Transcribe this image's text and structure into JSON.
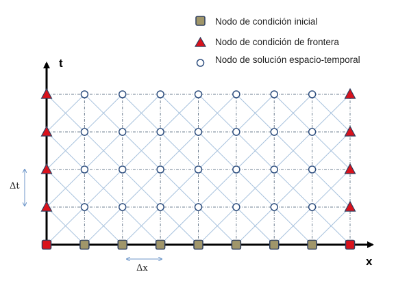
{
  "legend": {
    "initial_node": "Nodo de condición inicial",
    "boundary_node": "Nodo de condición de frontera",
    "solution_node": "Nodo de solución espacio-temporal"
  },
  "axes": {
    "x_label": "x",
    "t_label": "t"
  },
  "steps": {
    "dx_label": "Δx",
    "dt_label": "Δt"
  },
  "grid": {
    "columns": 9,
    "rows": 5
  },
  "colors": {
    "initial_node_fill": "#a0966a",
    "initial_node_border": "#2e3e5e",
    "boundary_node_fill": "#d9121c",
    "boundary_node_border": "#2e3e5e",
    "solution_node_fill": "#ffffff",
    "solution_node_border": "#2f4f7f",
    "grid_line": "#6e7f90",
    "diagonal_line": "#a9c3de",
    "axis": "#000000",
    "step_arrow": "#6d96c9"
  }
}
